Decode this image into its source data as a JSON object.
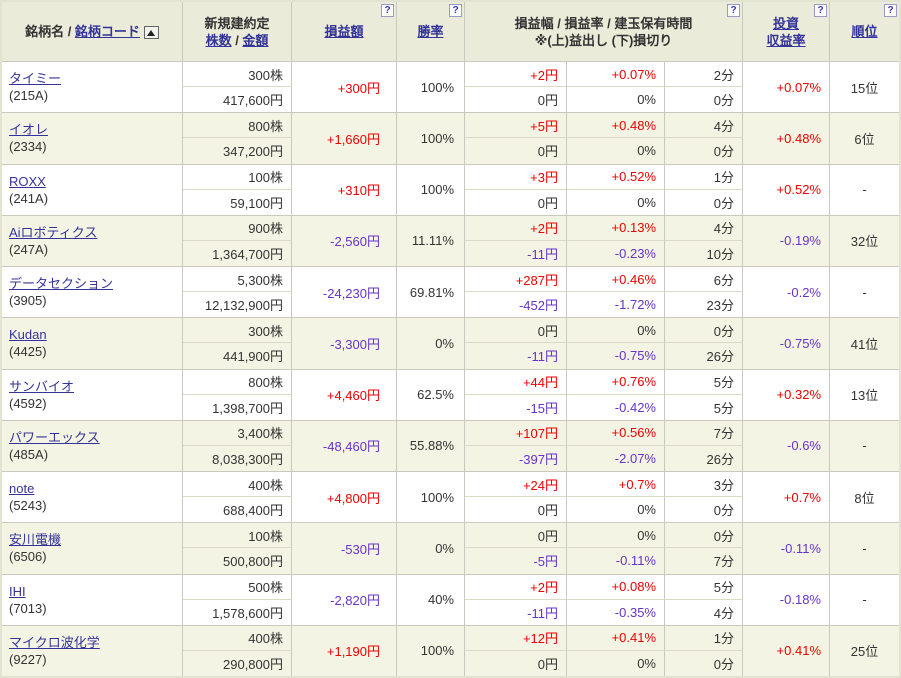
{
  "colors": {
    "positive": "#ee0000",
    "negative": "#6633cc",
    "link": "#333399",
    "header_bg": "#ebebd9",
    "row_alt_bg": "#f4f4e4",
    "grid_line": "#c9c9c0",
    "sub_line": "#dadac6",
    "outer_border": "#e3e3d1",
    "text": "#333333"
  },
  "header": {
    "name_label": "銘柄名",
    "name_sep": " / ",
    "code_link": "銘柄コード",
    "new_position_line1": "新規建約定",
    "shares_link": "株数",
    "shares_amount_sep": " / ",
    "amount_link": "金額",
    "pl_label": "損益額",
    "winrate_label": "勝率",
    "range_line1": "損益幅 / 損益率 / 建玉保有時間",
    "range_line2": "※(上)益出し (下)損切り",
    "roi_line1": "投資",
    "roi_line2": "収益率",
    "rank_label": "順位",
    "help_icon": "?"
  },
  "rows": [
    {
      "name": "タイミー",
      "code": "(215A)",
      "shares": "300株",
      "amount": "417,600円",
      "pl": "+300円",
      "winrate": "100%",
      "profit_width": "+2円",
      "profit_rate": "+0.07%",
      "profit_time": "2分",
      "loss_width": "0円",
      "loss_rate": "0%",
      "loss_time": "0分",
      "roi": "+0.07%",
      "rank": "15位"
    },
    {
      "name": "イオレ",
      "code": "(2334)",
      "shares": "800株",
      "amount": "347,200円",
      "pl": "+1,660円",
      "winrate": "100%",
      "profit_width": "+5円",
      "profit_rate": "+0.48%",
      "profit_time": "4分",
      "loss_width": "0円",
      "loss_rate": "0%",
      "loss_time": "0分",
      "roi": "+0.48%",
      "rank": "6位"
    },
    {
      "name": "ROXX",
      "code": "(241A)",
      "shares": "100株",
      "amount": "59,100円",
      "pl": "+310円",
      "winrate": "100%",
      "profit_width": "+3円",
      "profit_rate": "+0.52%",
      "profit_time": "1分",
      "loss_width": "0円",
      "loss_rate": "0%",
      "loss_time": "0分",
      "roi": "+0.52%",
      "rank": "-"
    },
    {
      "name": "Aiロボティクス",
      "code": "(247A)",
      "shares": "900株",
      "amount": "1,364,700円",
      "pl": "-2,560円",
      "winrate": "11.11%",
      "profit_width": "+2円",
      "profit_rate": "+0.13%",
      "profit_time": "4分",
      "loss_width": "-11円",
      "loss_rate": "-0.23%",
      "loss_time": "10分",
      "roi": "-0.19%",
      "rank": "32位"
    },
    {
      "name": "データセクション",
      "code": "(3905)",
      "shares": "5,300株",
      "amount": "12,132,900円",
      "pl": "-24,230円",
      "winrate": "69.81%",
      "profit_width": "+287円",
      "profit_rate": "+0.46%",
      "profit_time": "6分",
      "loss_width": "-452円",
      "loss_rate": "-1.72%",
      "loss_time": "23分",
      "roi": "-0.2%",
      "rank": "-"
    },
    {
      "name": "Kudan",
      "code": "(4425)",
      "shares": "300株",
      "amount": "441,900円",
      "pl": "-3,300円",
      "winrate": "0%",
      "profit_width": "0円",
      "profit_rate": "0%",
      "profit_time": "0分",
      "loss_width": "-11円",
      "loss_rate": "-0.75%",
      "loss_time": "26分",
      "roi": "-0.75%",
      "rank": "41位"
    },
    {
      "name": "サンバイオ",
      "code": "(4592)",
      "shares": "800株",
      "amount": "1,398,700円",
      "pl": "+4,460円",
      "winrate": "62.5%",
      "profit_width": "+44円",
      "profit_rate": "+0.76%",
      "profit_time": "5分",
      "loss_width": "-15円",
      "loss_rate": "-0.42%",
      "loss_time": "5分",
      "roi": "+0.32%",
      "rank": "13位"
    },
    {
      "name": "パワーエックス",
      "code": "(485A)",
      "shares": "3,400株",
      "amount": "8,038,300円",
      "pl": "-48,460円",
      "winrate": "55.88%",
      "profit_width": "+107円",
      "profit_rate": "+0.56%",
      "profit_time": "7分",
      "loss_width": "-397円",
      "loss_rate": "-2.07%",
      "loss_time": "26分",
      "roi": "-0.6%",
      "rank": "-"
    },
    {
      "name": "note",
      "code": "(5243)",
      "shares": "400株",
      "amount": "688,400円",
      "pl": "+4,800円",
      "winrate": "100%",
      "profit_width": "+24円",
      "profit_rate": "+0.7%",
      "profit_time": "3分",
      "loss_width": "0円",
      "loss_rate": "0%",
      "loss_time": "0分",
      "roi": "+0.7%",
      "rank": "8位"
    },
    {
      "name": "安川電機",
      "code": "(6506)",
      "shares": "100株",
      "amount": "500,800円",
      "pl": "-530円",
      "winrate": "0%",
      "profit_width": "0円",
      "profit_rate": "0%",
      "profit_time": "0分",
      "loss_width": "-5円",
      "loss_rate": "-0.11%",
      "loss_time": "7分",
      "roi": "-0.11%",
      "rank": "-"
    },
    {
      "name": "IHI",
      "code": "(7013)",
      "shares": "500株",
      "amount": "1,578,600円",
      "pl": "-2,820円",
      "winrate": "40%",
      "profit_width": "+2円",
      "profit_rate": "+0.08%",
      "profit_time": "5分",
      "loss_width": "-11円",
      "loss_rate": "-0.35%",
      "loss_time": "4分",
      "roi": "-0.18%",
      "rank": "-"
    },
    {
      "name": "マイクロ波化学",
      "code": "(9227)",
      "shares": "400株",
      "amount": "290,800円",
      "pl": "+1,190円",
      "winrate": "100%",
      "profit_width": "+12円",
      "profit_rate": "+0.41%",
      "profit_time": "1分",
      "loss_width": "0円",
      "loss_rate": "0%",
      "loss_time": "0分",
      "roi": "+0.41%",
      "rank": "25位"
    }
  ]
}
